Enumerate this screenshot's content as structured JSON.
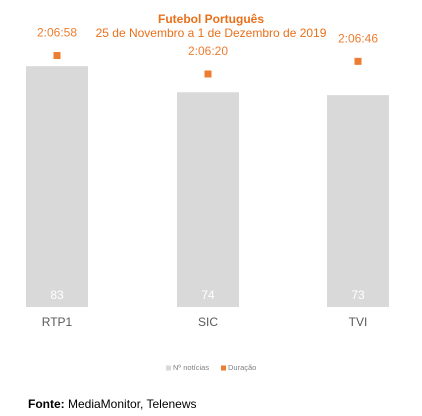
{
  "chart_data": {
    "type": "bar",
    "title": "Futebol Português",
    "subtitle": "25 de Novembro a 1 de Dezembro de 2019",
    "categories": [
      "RTP1",
      "SIC",
      "TVI"
    ],
    "series": [
      {
        "name": "Nº notícias",
        "values": [
          83,
          74,
          73
        ],
        "color": "#d9d9d9",
        "label_color": "#ffffff"
      },
      {
        "name": "Duração",
        "values": [
          "2:06:58",
          "2:06:20",
          "2:06:46"
        ],
        "seconds": [
          7618,
          7580,
          7606
        ],
        "color": "#ed7d31",
        "marker": "square"
      }
    ],
    "bar_ylim": [
      0,
      92
    ],
    "duration_ylim_seconds": [
      7100,
      7650
    ],
    "grid": false,
    "legend": "bottom",
    "source_label": "Fonte:",
    "source_text": "MediaMonitor, Telenews"
  },
  "colors": {
    "title": "#e8701a",
    "axis_text": "#595959",
    "legend_text": "#808080"
  }
}
